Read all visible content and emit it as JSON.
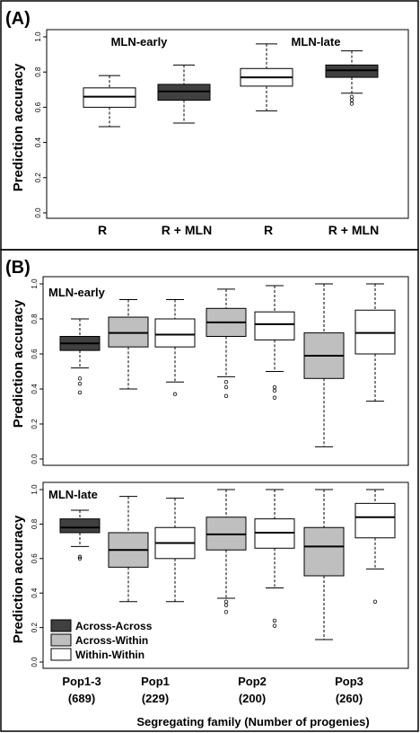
{
  "colors": {
    "dark": "#404040",
    "gray": "#bfbfbf",
    "white": "#ffffff",
    "line": "#000000"
  },
  "chart_data": [
    {
      "type": "boxplot",
      "panel": "(A)",
      "ylabel": "Prediction accuracy",
      "ylim": [
        0,
        1
      ],
      "yticks": [
        "0.0",
        "0.2",
        "0.4",
        "0.6",
        "0.8",
        "1.0"
      ],
      "group_labels": [
        "MLN-early",
        "MLN-late"
      ],
      "boxes": [
        {
          "label": "R",
          "fill": "white",
          "whisker_low": 0.49,
          "q1": 0.6,
          "median": 0.66,
          "q3": 0.71,
          "whisker_high": 0.78,
          "outliers": []
        },
        {
          "label": "R + MLN",
          "fill": "dark",
          "whisker_low": 0.51,
          "q1": 0.64,
          "median": 0.69,
          "q3": 0.73,
          "whisker_high": 0.84,
          "outliers": []
        },
        {
          "label": "R",
          "fill": "white",
          "whisker_low": 0.58,
          "q1": 0.72,
          "median": 0.77,
          "q3": 0.82,
          "whisker_high": 0.96,
          "outliers": []
        },
        {
          "label": "R + MLN",
          "fill": "dark",
          "whisker_low": 0.68,
          "q1": 0.77,
          "median": 0.81,
          "q3": 0.84,
          "whisker_high": 0.92,
          "outliers": [
            0.66,
            0.64,
            0.62
          ]
        }
      ]
    },
    {
      "type": "boxplot",
      "panel": "(B)",
      "ylabel": "Prediction accuracy",
      "xlabel": "Segregating family (Number of progenies)",
      "categories": [
        "Pop1-3\n(689)",
        "Pop1\n(229)",
        "Pop2\n(200)",
        "Pop3\n(260)"
      ],
      "legend": [
        {
          "label": "Across-Across",
          "fill": "dark"
        },
        {
          "label": "Across-Within",
          "fill": "gray"
        },
        {
          "label": "Within-Within",
          "fill": "white"
        }
      ],
      "subplots": [
        {
          "title": "MLN-early",
          "ylim": [
            0,
            1
          ],
          "yticks": [
            "0.0",
            "0.2",
            "0.4",
            "0.6",
            "0.8",
            "1.0"
          ],
          "boxes": [
            {
              "fill": "dark",
              "whisker_low": 0.52,
              "q1": 0.62,
              "median": 0.66,
              "q3": 0.7,
              "whisker_high": 0.8,
              "outliers": [
                0.46,
                0.43,
                0.38
              ]
            },
            {
              "fill": "gray",
              "whisker_low": 0.4,
              "q1": 0.64,
              "median": 0.72,
              "q3": 0.81,
              "whisker_high": 0.91,
              "outliers": []
            },
            {
              "fill": "white",
              "whisker_low": 0.44,
              "q1": 0.64,
              "median": 0.71,
              "q3": 0.8,
              "whisker_high": 0.91,
              "outliers": [
                0.37
              ]
            },
            {
              "fill": "gray",
              "whisker_low": 0.47,
              "q1": 0.7,
              "median": 0.78,
              "q3": 0.86,
              "whisker_high": 0.97,
              "outliers": [
                0.44,
                0.41,
                0.36
              ]
            },
            {
              "fill": "white",
              "whisker_low": 0.5,
              "q1": 0.68,
              "median": 0.77,
              "q3": 0.84,
              "whisker_high": 0.99,
              "outliers": [
                0.41,
                0.39,
                0.35
              ]
            },
            {
              "fill": "gray",
              "whisker_low": 0.07,
              "q1": 0.46,
              "median": 0.59,
              "q3": 0.72,
              "whisker_high": 1.0,
              "outliers": []
            },
            {
              "fill": "white",
              "whisker_low": 0.33,
              "q1": 0.6,
              "median": 0.72,
              "q3": 0.85,
              "whisker_high": 1.0,
              "outliers": []
            }
          ]
        },
        {
          "title": "MLN-late",
          "ylim": [
            0,
            1
          ],
          "yticks": [
            "0.0",
            "0.2",
            "0.4",
            "0.6",
            "0.8",
            "1.0"
          ],
          "boxes": [
            {
              "fill": "dark",
              "whisker_low": 0.67,
              "q1": 0.75,
              "median": 0.78,
              "q3": 0.83,
              "whisker_high": 0.88,
              "outliers": [
                0.61,
                0.6
              ]
            },
            {
              "fill": "gray",
              "whisker_low": 0.35,
              "q1": 0.55,
              "median": 0.65,
              "q3": 0.75,
              "whisker_high": 0.96,
              "outliers": []
            },
            {
              "fill": "white",
              "whisker_low": 0.35,
              "q1": 0.6,
              "median": 0.69,
              "q3": 0.78,
              "whisker_high": 0.95,
              "outliers": []
            },
            {
              "fill": "gray",
              "whisker_low": 0.37,
              "q1": 0.65,
              "median": 0.74,
              "q3": 0.84,
              "whisker_high": 1.0,
              "outliers": [
                0.35,
                0.33,
                0.29
              ]
            },
            {
              "fill": "white",
              "whisker_low": 0.43,
              "q1": 0.66,
              "median": 0.75,
              "q3": 0.83,
              "whisker_high": 1.0,
              "outliers": [
                0.24,
                0.21
              ]
            },
            {
              "fill": "gray",
              "whisker_low": 0.13,
              "q1": 0.5,
              "median": 0.67,
              "q3": 0.78,
              "whisker_high": 1.0,
              "outliers": []
            },
            {
              "fill": "white",
              "whisker_low": 0.54,
              "q1": 0.72,
              "median": 0.84,
              "q3": 0.92,
              "whisker_high": 1.0,
              "outliers": [
                0.35
              ]
            }
          ]
        }
      ]
    }
  ]
}
